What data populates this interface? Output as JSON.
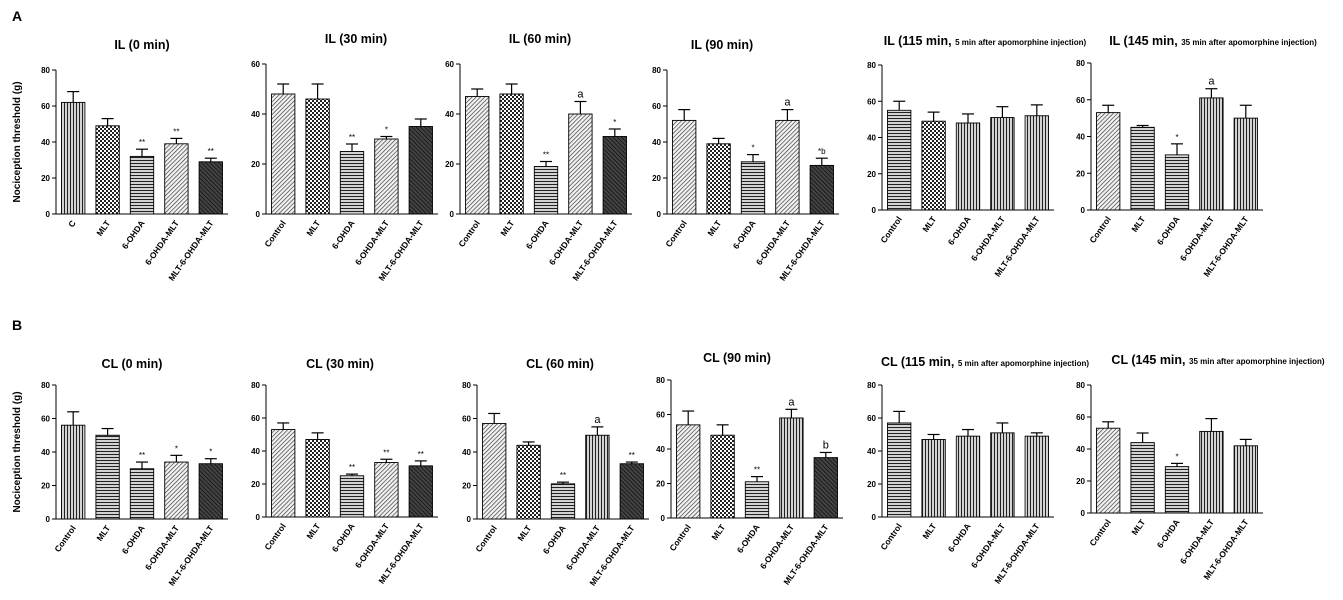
{
  "panel_labels": [
    "A",
    "B"
  ],
  "ylabel": "Nociception threshold (g)",
  "chart_data": [
    {
      "type": "bar",
      "title": "IL (0 min)",
      "title_sub": "",
      "categories": [
        "C",
        "MLT",
        "6-OHDA",
        "6-OHDA-MLT",
        "MLT-6-OHDA-MLT"
      ],
      "values": [
        62,
        49,
        32,
        39,
        29
      ],
      "errors": [
        6,
        4,
        4,
        3,
        2
      ],
      "annotations": [
        "",
        "",
        "**",
        "**",
        "**"
      ],
      "ylim": [
        0,
        80
      ],
      "yticks": [
        0,
        20,
        40,
        60,
        80
      ],
      "ylabel": "Nociception threshold (g)",
      "patterns": [
        "vert",
        "check",
        "horiz",
        "diagR",
        "diagL"
      ]
    },
    {
      "type": "bar",
      "title": "IL (30 min)",
      "title_sub": "",
      "categories": [
        "Control",
        "MLT",
        "6-OHDA",
        "6-OHDA-MLT",
        "MLT-6-OHDA-MLT"
      ],
      "values": [
        48,
        46,
        25,
        30,
        35
      ],
      "errors": [
        4,
        6,
        3,
        1,
        3
      ],
      "annotations": [
        "",
        "",
        "**",
        "*",
        ""
      ],
      "ylim": [
        0,
        60
      ],
      "yticks": [
        0,
        20,
        40,
        60
      ],
      "ylabel": "",
      "patterns": [
        "diagR",
        "check",
        "horiz",
        "diagR",
        "diagL"
      ]
    },
    {
      "type": "bar",
      "title": "IL (60 min)",
      "title_sub": "",
      "categories": [
        "Control",
        "MLT",
        "6-OHDA",
        "6-OHDA-MLT",
        "MLT-6-OHDA-MLT"
      ],
      "values": [
        47,
        48,
        19,
        40,
        31
      ],
      "errors": [
        3,
        4,
        2,
        5,
        3
      ],
      "annotations": [
        "",
        "",
        "**",
        "a",
        "*"
      ],
      "ylim": [
        0,
        60
      ],
      "yticks": [
        0,
        20,
        40,
        60
      ],
      "ylabel": "",
      "patterns": [
        "diagR",
        "check",
        "horiz",
        "diagR",
        "diagL"
      ]
    },
    {
      "type": "bar",
      "title": "IL (90 min)",
      "title_sub": "",
      "categories": [
        "Control",
        "MLT",
        "6-OHDA",
        "6-OHDA-MLT",
        "MLT-6-OHDA-MLT"
      ],
      "values": [
        52,
        39,
        29,
        52,
        27
      ],
      "errors": [
        6,
        3,
        4,
        6,
        4
      ],
      "annotations": [
        "",
        "",
        "*",
        "a",
        "*b"
      ],
      "ylim": [
        0,
        80
      ],
      "yticks": [
        0,
        20,
        40,
        60,
        80
      ],
      "ylabel": "",
      "patterns": [
        "diagR",
        "check",
        "horiz",
        "diagR",
        "diagL"
      ]
    },
    {
      "type": "bar",
      "title": "IL (115 min, ",
      "title_sub": "5 min after apomorphine injection)",
      "categories": [
        "Control",
        "MLT",
        "6-OHDA",
        "6-OHDA-MLT",
        "MLT-6-OHDA-MLT"
      ],
      "values": [
        55,
        49,
        48,
        51,
        52
      ],
      "errors": [
        5,
        5,
        5,
        6,
        6
      ],
      "annotations": [
        "",
        "",
        "",
        "",
        ""
      ],
      "ylim": [
        0,
        80
      ],
      "yticks": [
        0,
        20,
        40,
        60,
        80
      ],
      "ylabel": "",
      "patterns": [
        "horiz",
        "check",
        "vert",
        "vert",
        "vert"
      ]
    },
    {
      "type": "bar",
      "title": "IL (145 min, ",
      "title_sub": "35 min after apomorphine injection)",
      "categories": [
        "Control",
        "MLT",
        "6-OHDA",
        "6-OHDA-MLT",
        "MLT-6-OHDA-MLT"
      ],
      "values": [
        53,
        45,
        30,
        61,
        50
      ],
      "errors": [
        4,
        1,
        6,
        5,
        7
      ],
      "annotations": [
        "",
        "",
        "*",
        "a",
        ""
      ],
      "ylim": [
        0,
        80
      ],
      "yticks": [
        0,
        20,
        40,
        60,
        80
      ],
      "ylabel": "",
      "patterns": [
        "diagR",
        "horiz",
        "horiz",
        "vert",
        "vert"
      ]
    },
    {
      "type": "bar",
      "title": "CL (0 min)",
      "title_sub": "",
      "categories": [
        "Control",
        "MLT",
        "6-OHDA",
        "6-OHDA-MLT",
        "MLT-6-OHDA-MLT"
      ],
      "values": [
        56,
        50,
        30,
        34,
        33
      ],
      "errors": [
        8,
        4,
        4,
        4,
        3
      ],
      "annotations": [
        "",
        "",
        "**",
        "*",
        "*"
      ],
      "ylim": [
        0,
        80
      ],
      "yticks": [
        0,
        20,
        40,
        60,
        80
      ],
      "ylabel": "Nociception threshold (g)",
      "patterns": [
        "vert",
        "horiz",
        "horiz",
        "diagR",
        "diagL"
      ]
    },
    {
      "type": "bar",
      "title": "CL (30 min)",
      "title_sub": "",
      "categories": [
        "Control",
        "MLT",
        "6-OHDA",
        "6-OHDA-MLT",
        "MLT-6-OHDA-MLT"
      ],
      "values": [
        53,
        47,
        25,
        33,
        31
      ],
      "errors": [
        4,
        4,
        1,
        2,
        3
      ],
      "annotations": [
        "",
        "",
        "**",
        "**",
        "**"
      ],
      "ylim": [
        0,
        80
      ],
      "yticks": [
        0,
        20,
        40,
        60,
        80
      ],
      "ylabel": "",
      "patterns": [
        "diagR",
        "check",
        "horiz",
        "diagR",
        "diagL"
      ]
    },
    {
      "type": "bar",
      "title": "CL (60 min)",
      "title_sub": "",
      "categories": [
        "Control",
        "MLT",
        "6-OHDA",
        "6-OHDA-MLT",
        "MLT-6-OHDA-MLT"
      ],
      "values": [
        57,
        44,
        21,
        50,
        33
      ],
      "errors": [
        6,
        2,
        1,
        5,
        1
      ],
      "annotations": [
        "",
        "",
        "**",
        "a",
        "**"
      ],
      "ylim": [
        0,
        80
      ],
      "yticks": [
        0,
        20,
        40,
        60,
        80
      ],
      "ylabel": "",
      "patterns": [
        "diagR",
        "check",
        "horiz",
        "vert",
        "diagL"
      ]
    },
    {
      "type": "bar",
      "title": "CL (90 min)",
      "title_sub": "",
      "categories": [
        "Control",
        "MLT",
        "6-OHDA",
        "6-OHDA-MLT",
        "MLT-6-OHDA-MLT"
      ],
      "values": [
        54,
        48,
        21,
        58,
        35
      ],
      "errors": [
        8,
        6,
        3,
        5,
        3
      ],
      "annotations": [
        "",
        "",
        "**",
        "a",
        "b"
      ],
      "ylim": [
        0,
        80
      ],
      "yticks": [
        0,
        20,
        40,
        60,
        80
      ],
      "ylabel": "",
      "patterns": [
        "diagR",
        "check",
        "horiz",
        "vert",
        "diagL"
      ]
    },
    {
      "type": "bar",
      "title": "CL (115 min, ",
      "title_sub": "5 min after apomorphine injection)",
      "categories": [
        "Control",
        "MLT",
        "6-OHDA",
        "6-OHDA-MLT",
        "MLT-6-OHDA-MLT"
      ],
      "values": [
        57,
        47,
        49,
        51,
        49
      ],
      "errors": [
        7,
        3,
        4,
        6,
        2
      ],
      "annotations": [
        "",
        "",
        "",
        "",
        ""
      ],
      "ylim": [
        0,
        80
      ],
      "yticks": [
        0,
        20,
        40,
        60,
        80
      ],
      "ylabel": "",
      "patterns": [
        "horiz",
        "vert",
        "vert",
        "vert",
        "vert"
      ]
    },
    {
      "type": "bar",
      "title": "CL (145 min, ",
      "title_sub": "35 min after apomorphine injection)",
      "categories": [
        "Control",
        "MLT",
        "6-OHDA",
        "6-OHDA-MLT",
        "MLT-6-OHDA-MLT"
      ],
      "values": [
        53,
        44,
        29,
        51,
        42
      ],
      "errors": [
        4,
        6,
        2,
        8,
        4
      ],
      "annotations": [
        "",
        "",
        "*",
        "",
        ""
      ],
      "ylim": [
        0,
        80
      ],
      "yticks": [
        0,
        20,
        40,
        60,
        80
      ],
      "ylabel": "",
      "patterns": [
        "diagR",
        "horiz",
        "horiz",
        "vert",
        "vert"
      ]
    }
  ]
}
